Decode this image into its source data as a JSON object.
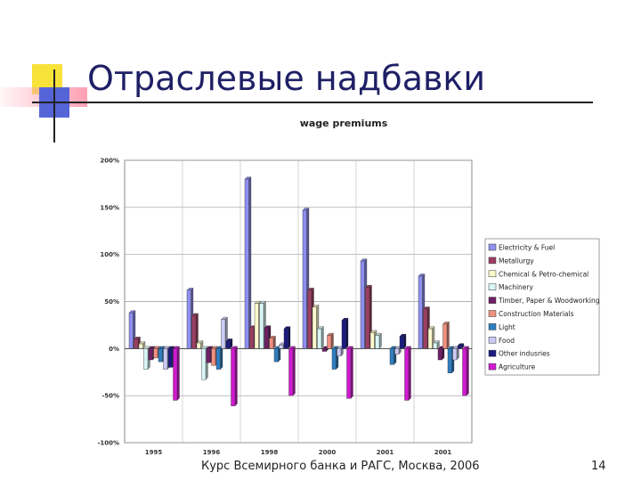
{
  "slide": {
    "title": "Отраслевые надбавки",
    "footer": "Курс Всемирного банка и РАГС, Москва, 2006",
    "page_number": "14"
  },
  "chart_data": {
    "type": "bar",
    "title": "wage premiums",
    "categories": [
      "1995",
      "1996",
      "1998",
      "2000",
      "2001",
      "2001"
    ],
    "ylim": [
      -100,
      200
    ],
    "yticks": [
      "200%",
      "150%",
      "100%",
      "50%",
      "0%",
      "-50%",
      "-100%"
    ],
    "ytick_values": [
      200,
      150,
      100,
      50,
      0,
      -50,
      -100
    ],
    "grid": true,
    "legend_position": "right",
    "series": [
      {
        "name": "Electricity & Fuel",
        "color": "#8f8ff0",
        "values": [
          38,
          62,
          180,
          147,
          93,
          77
        ]
      },
      {
        "name": "Metallurgy",
        "color": "#9c3f62",
        "values": [
          10,
          35,
          22,
          62,
          65,
          42
        ]
      },
      {
        "name": "Chemical & Petro-chemical",
        "color": "#fbf8cc",
        "values": [
          5,
          6,
          48,
          44,
          17,
          21
        ]
      },
      {
        "name": "Machinery",
        "color": "#d9f6f6",
        "values": [
          -22,
          -33,
          48,
          21,
          14,
          6
        ]
      },
      {
        "name": "Timber, Paper & Woodworking",
        "color": "#6e1f66",
        "values": [
          -12,
          -15,
          22,
          -3,
          0,
          -12
        ]
      },
      {
        "name": "Construction Materials",
        "color": "#f09080",
        "values": [
          -10,
          -18,
          11,
          14,
          0,
          26
        ]
      },
      {
        "name": "Light",
        "color": "#2f7ec0",
        "values": [
          -14,
          -22,
          -14,
          -22,
          -17,
          -26
        ]
      },
      {
        "name": "Food",
        "color": "#cbcbf5",
        "values": [
          -22,
          31,
          4,
          -8,
          -6,
          -12
        ]
      },
      {
        "name": "Other indusries",
        "color": "#1a1a80",
        "values": [
          -20,
          8,
          21,
          30,
          13,
          3
        ]
      },
      {
        "name": "Agriculture",
        "color": "#d01ad0",
        "values": [
          -55,
          -61,
          -50,
          -53,
          -55,
          -50
        ]
      }
    ]
  }
}
